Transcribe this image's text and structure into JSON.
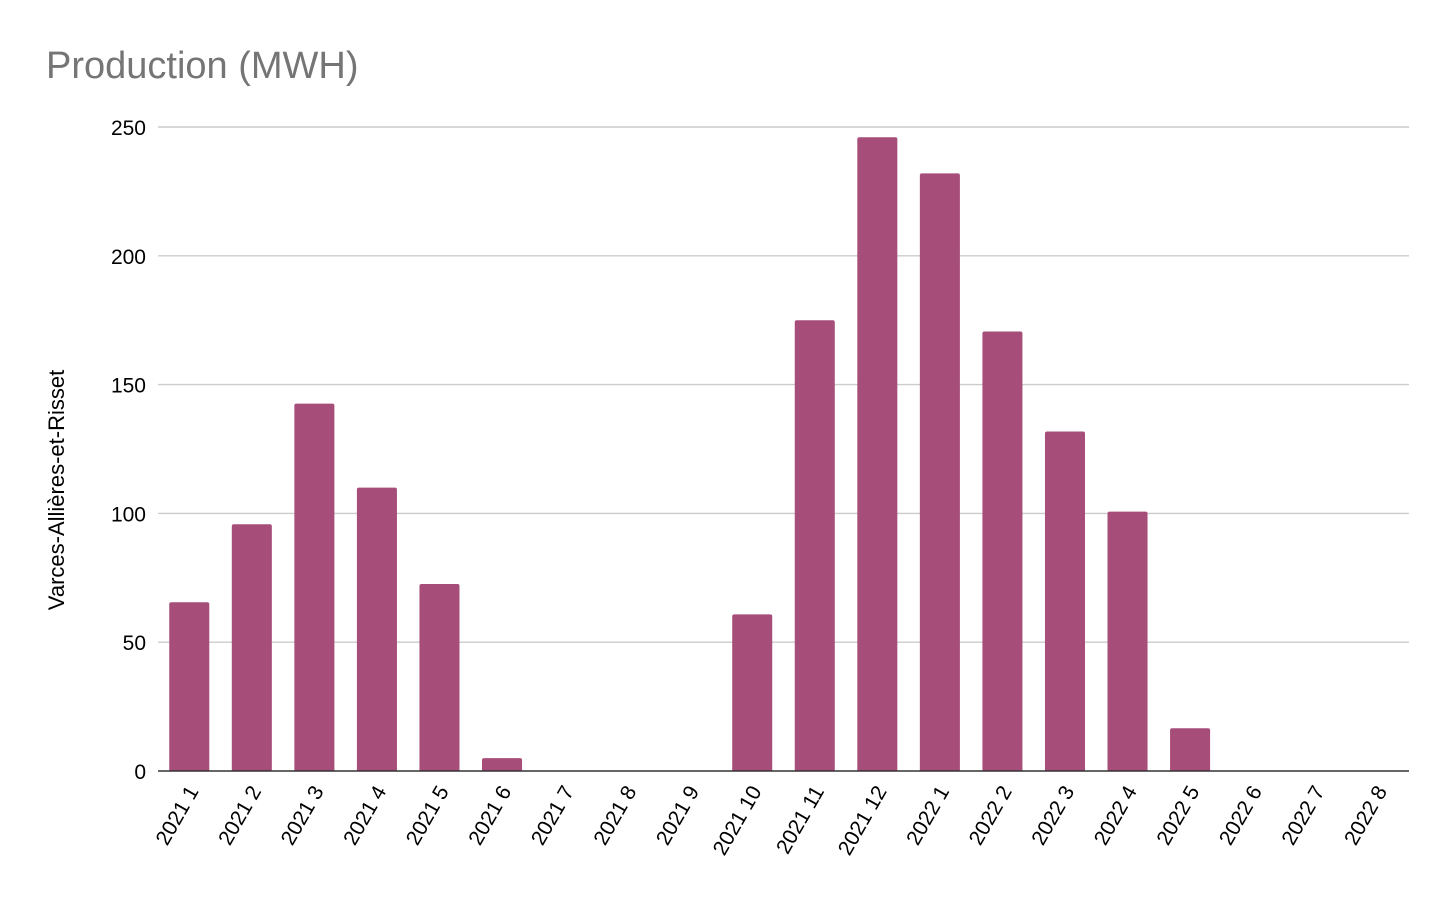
{
  "chart_data": {
    "type": "bar",
    "title": "Production (MWH)",
    "xlabel": "",
    "ylabel": "Varces-Allières-et-Risset",
    "ylim": [
      0,
      250
    ],
    "yticks": [
      0,
      50,
      100,
      150,
      200,
      250
    ],
    "grid": true,
    "legend": "none",
    "bar_color": "#a64d79",
    "categories": [
      "2021 1",
      "2021 2",
      "2021 3",
      "2021 4",
      "2021 5",
      "2021 6",
      "2021 7",
      "2021 8",
      "2021 9",
      "2021 10",
      "2021 11",
      "2021 12",
      "2022 1",
      "2022 2",
      "2022 3",
      "2022 4",
      "2022 5",
      "2022 6",
      "2022 7",
      "2022 8"
    ],
    "values": [
      65.5,
      95.8,
      142.6,
      110,
      72.6,
      5,
      0,
      0,
      0,
      60.8,
      175,
      246,
      232,
      170.6,
      131.8,
      100.7,
      16.6,
      0,
      0,
      0
    ]
  }
}
